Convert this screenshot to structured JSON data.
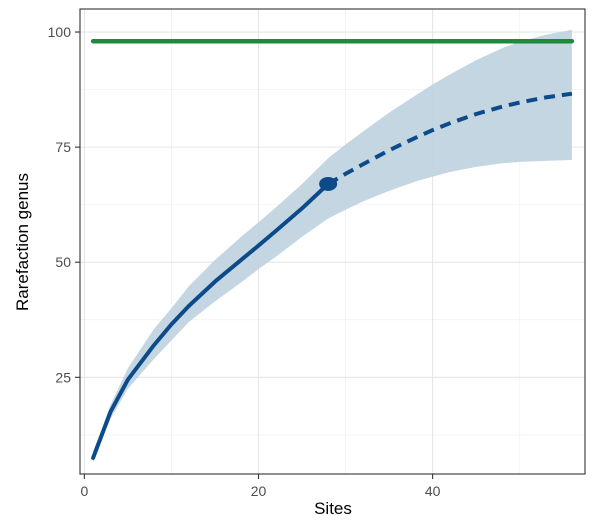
{
  "chart_data": {
    "type": "line",
    "title": "",
    "xlabel": "Sites",
    "ylabel": "Rarefaction genus",
    "xlim": [
      -0.5,
      57.5
    ],
    "ylim": [
      4,
      105
    ],
    "x_ticks": [
      0,
      20,
      40
    ],
    "y_ticks": [
      25,
      50,
      75,
      100
    ],
    "grid": true,
    "legend": "none",
    "colors": {
      "estimate": "#0d4a8a",
      "band": "#bfd2e0",
      "asymptote": "#1e8a3c",
      "grid": "#e6e6e6",
      "frame": "#333333"
    },
    "series": [
      {
        "role": "rarefaction",
        "line_style": "solid",
        "x": [
          1,
          2,
          3,
          5,
          8,
          10,
          12,
          15,
          18,
          20,
          22,
          25,
          28
        ],
        "y": [
          7.5,
          12.5,
          17.5,
          24.5,
          32,
          36.5,
          40.5,
          45.8,
          50.5,
          53.6,
          56.8,
          61.7,
          67
        ]
      },
      {
        "role": "extrapolation",
        "line_style": "dashed",
        "x": [
          28,
          30,
          32,
          35,
          38,
          40,
          42,
          45,
          48,
          50,
          53,
          56
        ],
        "y": [
          67,
          69.2,
          71.3,
          74.3,
          77,
          78.7,
          80.2,
          82.2,
          83.8,
          84.7,
          85.8,
          86.6
        ]
      },
      {
        "role": "observed-sample",
        "marker": "point",
        "x": [
          28
        ],
        "y": [
          67
        ]
      },
      {
        "role": "asymptote",
        "line_style": "solid",
        "x": [
          1,
          56
        ],
        "y": [
          98,
          98
        ]
      }
    ],
    "confidence_band": {
      "x": [
        1,
        2,
        3,
        5,
        8,
        10,
        12,
        15,
        18,
        20,
        22,
        25,
        28,
        30,
        32,
        35,
        38,
        40,
        42,
        45,
        48,
        50,
        53,
        56
      ],
      "upper": [
        9,
        13.8,
        19,
        27,
        35.5,
        40,
        44.8,
        50.5,
        55.5,
        58.7,
        61.9,
        67,
        72.6,
        75.6,
        78.4,
        82.5,
        86.2,
        88.6,
        90.8,
        93.9,
        96.5,
        97.9,
        99.4,
        100.5
      ],
      "lower": [
        6.5,
        11.5,
        16,
        22.5,
        29,
        33,
        37,
        41.5,
        45.6,
        48.5,
        51.2,
        55.5,
        59.5,
        61.4,
        63.2,
        65.5,
        67.5,
        68.6,
        69.6,
        70.7,
        71.5,
        71.8,
        72,
        72.2
      ]
    }
  }
}
